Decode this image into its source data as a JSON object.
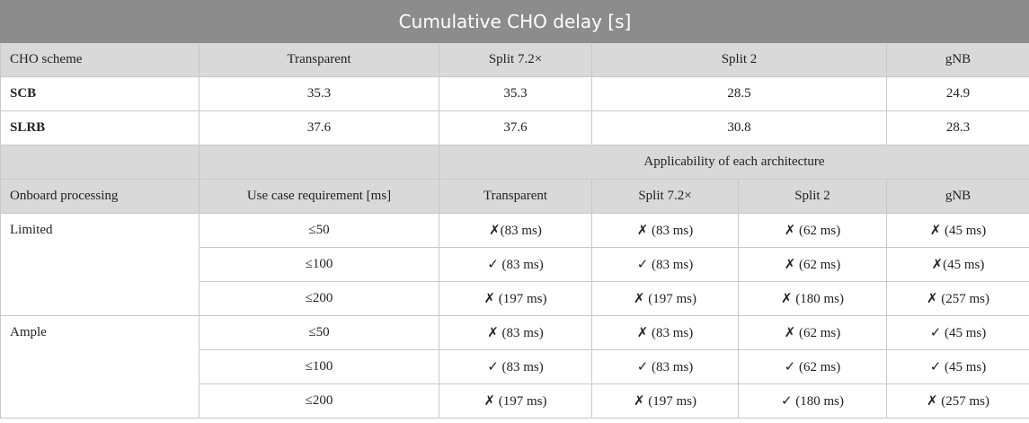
{
  "title": "Cumulative CHO delay [s]",
  "delay_table": {
    "header": [
      "CHO scheme",
      "Transparent",
      "Split 7.2×",
      "Split 2",
      "gNB"
    ],
    "rows": [
      [
        "SCB",
        "35.3",
        "35.3",
        "28.5",
        "24.9"
      ],
      [
        "SLRB",
        "37.6",
        "37.6",
        "30.8",
        "28.3"
      ]
    ]
  },
  "applicability_table": {
    "group_header": "Applicability of each architecture",
    "header": [
      "Onboard processing",
      "Use case requirement [ms]",
      "Transparent",
      "Split 7.2×",
      "Split 2",
      "gNB"
    ],
    "groups": [
      {
        "label": "Limited",
        "rows": [
          [
            "≤50",
            "✗(83 ms)",
            "✗ (83 ms)",
            "✗ (62 ms)",
            "✗ (45 ms)"
          ],
          [
            "≤100",
            "✓ (83 ms)",
            "✓ (83 ms)",
            "✗ (62 ms)",
            "✗(45 ms)"
          ],
          [
            "≤200",
            "✗ (197 ms)",
            "✗ (197 ms)",
            "✗ (180 ms)",
            "✗ (257 ms)"
          ]
        ]
      },
      {
        "label": "Ample",
        "rows": [
          [
            "≤50",
            "✗ (83 ms)",
            "✗ (83 ms)",
            "✗ (62 ms)",
            "✓ (45 ms)"
          ],
          [
            "≤100",
            "✓ (83 ms)",
            "✓ (83 ms)",
            "✓ (62 ms)",
            "✓ (45 ms)"
          ],
          [
            "≤200",
            "✗ (197 ms)",
            "✗ (197 ms)",
            "✓ (180 ms)",
            "✗ (257 ms)"
          ]
        ]
      }
    ]
  }
}
